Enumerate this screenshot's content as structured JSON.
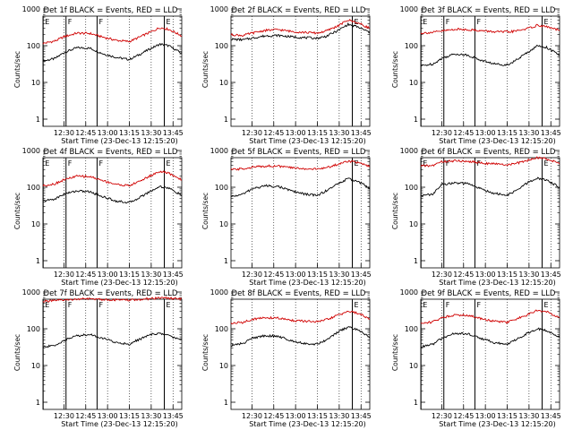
{
  "chart_data": [
    {
      "type": "line",
      "title": "Det 1f BLACK = Events, RED = LLD",
      "xlabel": "Start Time (23-Dec-13 12:15:20)",
      "ylabel": "Counts/sec",
      "yscale": "log",
      "ylim": [
        1,
        1000
      ],
      "xlim": [
        12.26,
        13.85
      ],
      "xtick_labels": [
        "12:30",
        "12:45",
        "13:00",
        "13:15",
        "13:30",
        "13:45"
      ],
      "ytick_labels": [
        "1",
        "10",
        "100",
        "1000"
      ],
      "markers": [
        {
          "label": "E",
          "x": 12.262
        },
        {
          "label": "F",
          "x": 12.524
        },
        {
          "label": "F",
          "x": 12.88
        },
        {
          "label": "E",
          "x": 13.65
        }
      ],
      "series": [
        {
          "name": "BLACK = Events",
          "color": "#000000",
          "x": [
            12.26,
            12.4,
            12.5,
            12.65,
            12.8,
            12.95,
            13.1,
            13.25,
            13.35,
            13.5,
            13.6,
            13.7,
            13.85
          ],
          "values": [
            38,
            45,
            65,
            88,
            85,
            60,
            48,
            42,
            55,
            85,
            110,
            100,
            62
          ]
        },
        {
          "name": "RED = LLD",
          "color": "#d00000",
          "x": [
            12.26,
            12.4,
            12.5,
            12.65,
            12.8,
            12.95,
            13.1,
            13.25,
            13.35,
            13.5,
            13.6,
            13.7,
            13.85
          ],
          "values": [
            115,
            135,
            175,
            220,
            215,
            170,
            140,
            130,
            165,
            240,
            310,
            280,
            185
          ]
        }
      ]
    },
    {
      "type": "line",
      "title": "Det 2f BLACK = Events, RED = LLD",
      "xlabel": "Start Time (23-Dec-13 12:15:20)",
      "ylabel": "Counts/sec",
      "yscale": "log",
      "ylim": [
        1,
        1000
      ],
      "xlim": [
        12.26,
        13.85
      ],
      "xtick_labels": [
        "12:30",
        "12:45",
        "13:00",
        "13:15",
        "13:30",
        "13:45"
      ],
      "ytick_labels": [
        "1",
        "10",
        "100",
        "1000"
      ],
      "markers": [
        {
          "label": "E",
          "x": 13.65
        }
      ],
      "series": [
        {
          "name": "BLACK = Events",
          "color": "#000000",
          "x": [
            12.26,
            12.4,
            12.5,
            12.65,
            12.8,
            12.95,
            13.1,
            13.25,
            13.35,
            13.5,
            13.6,
            13.7,
            13.85
          ],
          "values": [
            150,
            145,
            160,
            185,
            190,
            175,
            165,
            160,
            180,
            270,
            380,
            330,
            230
          ]
        },
        {
          "name": "RED = LLD",
          "color": "#d00000",
          "x": [
            12.26,
            12.4,
            12.5,
            12.65,
            12.8,
            12.95,
            13.1,
            13.25,
            13.35,
            13.5,
            13.6,
            13.7,
            13.85
          ],
          "values": [
            200,
            190,
            220,
            260,
            275,
            245,
            230,
            220,
            250,
            360,
            500,
            430,
            300
          ]
        }
      ]
    },
    {
      "type": "line",
      "title": "Det 3f BLACK = Events, RED = LLD",
      "xlabel": "Start Time (23-Dec-13 12:15:20)",
      "ylabel": "Counts/sec",
      "yscale": "log",
      "ylim": [
        1,
        1000
      ],
      "xlim": [
        12.26,
        13.85
      ],
      "xtick_labels": [
        "12:30",
        "12:45",
        "13:00",
        "13:15",
        "13:30",
        "13:45"
      ],
      "ytick_labels": [
        "1",
        "10",
        "100",
        "1000"
      ],
      "markers": [
        {
          "label": "E",
          "x": 12.262
        },
        {
          "label": "F",
          "x": 12.524
        },
        {
          "label": "F",
          "x": 12.88
        },
        {
          "label": "E",
          "x": 13.65
        }
      ],
      "series": [
        {
          "name": "BLACK = Events",
          "color": "#000000",
          "x": [
            12.26,
            12.4,
            12.5,
            12.65,
            12.8,
            12.95,
            13.1,
            13.25,
            13.35,
            13.5,
            13.6,
            13.7,
            13.85
          ],
          "values": [
            28,
            32,
            45,
            60,
            55,
            40,
            32,
            30,
            40,
            70,
            100,
            90,
            55
          ]
        },
        {
          "name": "RED = LLD",
          "color": "#d00000",
          "x": [
            12.26,
            12.4,
            12.5,
            12.65,
            12.8,
            12.95,
            13.1,
            13.25,
            13.35,
            13.5,
            13.6,
            13.7,
            13.85
          ],
          "values": [
            220,
            230,
            250,
            280,
            275,
            255,
            240,
            235,
            250,
            300,
            360,
            330,
            260
          ]
        }
      ]
    },
    {
      "type": "line",
      "title": "Det 4f BLACK = Events, RED = LLD",
      "xlabel": "Start Time (23-Dec-13 12:15:20)",
      "ylabel": "Counts/sec",
      "yscale": "log",
      "ylim": [
        1,
        1000
      ],
      "xlim": [
        12.26,
        13.85
      ],
      "xtick_labels": [
        "12:30",
        "12:45",
        "13:00",
        "13:15",
        "13:30",
        "13:45"
      ],
      "ytick_labels": [
        "1",
        "10",
        "100",
        "1000"
      ],
      "markers": [
        {
          "label": "E",
          "x": 12.262
        },
        {
          "label": "F",
          "x": 12.524
        },
        {
          "label": "F",
          "x": 12.88
        },
        {
          "label": "E",
          "x": 13.65
        }
      ],
      "series": [
        {
          "name": "BLACK = Events",
          "color": "#000000",
          "x": [
            12.26,
            12.4,
            12.5,
            12.65,
            12.8,
            12.95,
            13.1,
            13.25,
            13.35,
            13.5,
            13.6,
            13.7,
            13.85
          ],
          "values": [
            42,
            48,
            65,
            80,
            75,
            55,
            42,
            38,
            50,
            80,
            105,
            95,
            60
          ]
        },
        {
          "name": "RED = LLD",
          "color": "#d00000",
          "x": [
            12.26,
            12.4,
            12.5,
            12.65,
            12.8,
            12.95,
            13.1,
            13.25,
            13.35,
            13.5,
            13.6,
            13.7,
            13.85
          ],
          "values": [
            110,
            125,
            160,
            200,
            195,
            150,
            120,
            110,
            140,
            210,
            270,
            240,
            160
          ]
        }
      ]
    },
    {
      "type": "line",
      "title": "Det 5f BLACK = Events, RED = LLD",
      "xlabel": "Start Time (23-Dec-13 12:15:20)",
      "ylabel": "Counts/sec",
      "yscale": "log",
      "ylim": [
        1,
        1000
      ],
      "xlim": [
        12.26,
        13.85
      ],
      "xtick_labels": [
        "12:30",
        "12:45",
        "13:00",
        "13:15",
        "13:30",
        "13:45"
      ],
      "ytick_labels": [
        "1",
        "10",
        "100",
        "1000"
      ],
      "markers": [
        {
          "label": "E",
          "x": 13.65
        }
      ],
      "series": [
        {
          "name": "BLACK = Events",
          "color": "#000000",
          "x": [
            12.26,
            12.4,
            12.5,
            12.65,
            12.8,
            12.95,
            13.1,
            13.25,
            13.35,
            13.5,
            13.6,
            13.7,
            13.85
          ],
          "values": [
            55,
            65,
            90,
            110,
            105,
            80,
            65,
            60,
            80,
            130,
            170,
            150,
            95
          ]
        },
        {
          "name": "RED = LLD",
          "color": "#d00000",
          "x": [
            12.26,
            12.4,
            12.5,
            12.65,
            12.8,
            12.95,
            13.1,
            13.25,
            13.35,
            13.5,
            13.6,
            13.7,
            13.85
          ],
          "values": [
            300,
            320,
            350,
            380,
            375,
            340,
            320,
            310,
            340,
            430,
            520,
            480,
            360
          ]
        }
      ]
    },
    {
      "type": "line",
      "title": "Det 6f BLACK = Events, RED = LLD",
      "xlabel": "Start Time (23-Dec-13 12:15:20)",
      "ylabel": "Counts/sec",
      "yscale": "log",
      "ylim": [
        1,
        1000
      ],
      "xlim": [
        12.26,
        13.85
      ],
      "xtick_labels": [
        "12:30",
        "12:45",
        "13:00",
        "13:15",
        "13:30",
        "13:45"
      ],
      "ytick_labels": [
        "1",
        "10",
        "100",
        "1000"
      ],
      "markers": [
        {
          "label": "E",
          "x": 12.262
        },
        {
          "label": "F",
          "x": 12.524
        },
        {
          "label": "F",
          "x": 12.88
        },
        {
          "label": "E",
          "x": 13.65
        }
      ],
      "series": [
        {
          "name": "BLACK = Events",
          "color": "#000000",
          "x": [
            12.26,
            12.4,
            12.5,
            12.65,
            12.8,
            12.95,
            13.1,
            13.25,
            13.35,
            13.5,
            13.6,
            13.7,
            13.85
          ],
          "values": [
            58,
            65,
            120,
            130,
            125,
            90,
            68,
            60,
            80,
            140,
            175,
            155,
            100
          ]
        },
        {
          "name": "RED = LLD",
          "color": "#d00000",
          "x": [
            12.26,
            12.4,
            12.5,
            12.65,
            12.8,
            12.95,
            13.1,
            13.25,
            13.35,
            13.5,
            13.6,
            13.7,
            13.85
          ],
          "values": [
            380,
            390,
            500,
            520,
            510,
            460,
            430,
            410,
            440,
            550,
            640,
            590,
            450
          ]
        }
      ]
    },
    {
      "type": "line",
      "title": "Det 7f BLACK = Events, RED = LLD",
      "xlabel": "Start Time (23-Dec-13 12:15:20)",
      "ylabel": "Counts/sec",
      "yscale": "log",
      "ylim": [
        1,
        1000
      ],
      "xlim": [
        12.26,
        13.85
      ],
      "xtick_labels": [
        "12:30",
        "12:45",
        "13:00",
        "13:15",
        "13:30",
        "13:45"
      ],
      "ytick_labels": [
        "1",
        "10",
        "100",
        "1000"
      ],
      "markers": [
        {
          "label": "E",
          "x": 12.262
        },
        {
          "label": "F",
          "x": 12.524
        },
        {
          "label": "F",
          "x": 12.88
        },
        {
          "label": "E",
          "x": 13.65
        }
      ],
      "series": [
        {
          "name": "BLACK = Events",
          "color": "#000000",
          "x": [
            12.26,
            12.4,
            12.5,
            12.65,
            12.8,
            12.95,
            13.1,
            13.25,
            13.35,
            13.5,
            13.6,
            13.7,
            13.85
          ],
          "values": [
            32,
            35,
            48,
            65,
            70,
            55,
            42,
            38,
            50,
            70,
            75,
            65,
            50
          ]
        },
        {
          "name": "RED = LLD",
          "color": "#d00000",
          "x": [
            12.26,
            12.4,
            12.5,
            12.65,
            12.8,
            12.95,
            13.1,
            13.25,
            13.35,
            13.5,
            13.6,
            13.7,
            13.85
          ],
          "values": [
            560,
            580,
            600,
            640,
            650,
            630,
            610,
            600,
            620,
            660,
            700,
            680,
            640
          ]
        }
      ]
    },
    {
      "type": "line",
      "title": "Det 8f BLACK = Events, RED = LLD",
      "xlabel": "Start Time (23-Dec-13 12:15:20)",
      "ylabel": "Counts/sec",
      "yscale": "log",
      "ylim": [
        1,
        1000
      ],
      "xlim": [
        12.26,
        13.85
      ],
      "xtick_labels": [
        "12:30",
        "12:45",
        "13:00",
        "13:15",
        "13:30",
        "13:45"
      ],
      "ytick_labels": [
        "1",
        "10",
        "100",
        "1000"
      ],
      "markers": [
        {
          "label": "E",
          "x": 13.65
        }
      ],
      "series": [
        {
          "name": "BLACK = Events",
          "color": "#000000",
          "x": [
            12.26,
            12.4,
            12.5,
            12.65,
            12.8,
            12.95,
            13.1,
            13.25,
            13.35,
            13.5,
            13.6,
            13.7,
            13.85
          ],
          "values": [
            35,
            40,
            55,
            65,
            62,
            48,
            40,
            38,
            50,
            85,
            110,
            95,
            60
          ]
        },
        {
          "name": "RED = LLD",
          "color": "#d00000",
          "x": [
            12.26,
            12.4,
            12.5,
            12.65,
            12.8,
            12.95,
            13.1,
            13.25,
            13.35,
            13.5,
            13.6,
            13.7,
            13.85
          ],
          "values": [
            140,
            150,
            180,
            200,
            195,
            170,
            160,
            155,
            175,
            240,
            300,
            270,
            190
          ]
        }
      ]
    },
    {
      "type": "line",
      "title": "Det 9f BLACK = Events, RED = LLD",
      "xlabel": "Start Time (23-Dec-13 12:15:20)",
      "ylabel": "Counts/sec",
      "yscale": "log",
      "ylim": [
        1,
        1000
      ],
      "xlim": [
        12.26,
        13.85
      ],
      "xtick_labels": [
        "12:30",
        "12:45",
        "13:00",
        "13:15",
        "13:30",
        "13:45"
      ],
      "ytick_labels": [
        "1",
        "10",
        "100",
        "1000"
      ],
      "markers": [
        {
          "label": "E",
          "x": 12.262
        },
        {
          "label": "F",
          "x": 12.524
        },
        {
          "label": "F",
          "x": 12.88
        },
        {
          "label": "E",
          "x": 13.65
        }
      ],
      "series": [
        {
          "name": "BLACK = Events",
          "color": "#000000",
          "x": [
            12.26,
            12.4,
            12.5,
            12.65,
            12.8,
            12.95,
            13.1,
            13.25,
            13.35,
            13.5,
            13.6,
            13.7,
            13.85
          ],
          "values": [
            32,
            38,
            55,
            75,
            72,
            55,
            42,
            38,
            50,
            80,
            100,
            90,
            58
          ]
        },
        {
          "name": "RED = LLD",
          "color": "#d00000",
          "x": [
            12.26,
            12.4,
            12.5,
            12.65,
            12.8,
            12.95,
            13.1,
            13.25,
            13.35,
            13.5,
            13.6,
            13.7,
            13.85
          ],
          "values": [
            140,
            155,
            200,
            240,
            235,
            190,
            160,
            150,
            180,
            250,
            320,
            290,
            200
          ]
        }
      ]
    }
  ]
}
